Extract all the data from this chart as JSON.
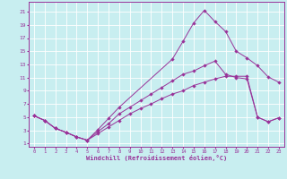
{
  "xlabel": "Windchill (Refroidissement éolien,°C)",
  "background_color": "#c8eef0",
  "line_color": "#993399",
  "xlim": [
    -0.5,
    23.5
  ],
  "ylim": [
    0.5,
    22.5
  ],
  "xticks": [
    0,
    1,
    2,
    3,
    4,
    5,
    6,
    7,
    8,
    9,
    10,
    11,
    12,
    13,
    14,
    15,
    16,
    17,
    18,
    19,
    20,
    21,
    22,
    23
  ],
  "yticks": [
    1,
    3,
    5,
    7,
    9,
    11,
    13,
    15,
    17,
    19,
    21
  ],
  "curve1_x": [
    0,
    1,
    2,
    3,
    4,
    5,
    6,
    7,
    8,
    13,
    14,
    15,
    16,
    17,
    18,
    19,
    20,
    21,
    22,
    23
  ],
  "curve1_y": [
    5.2,
    4.5,
    3.3,
    2.7,
    2.0,
    1.5,
    3.1,
    4.8,
    6.5,
    13.8,
    16.5,
    19.3,
    21.2,
    19.5,
    18.0,
    15.0,
    14.0,
    12.8,
    11.1,
    10.3
  ],
  "curve2_x": [
    0,
    1,
    2,
    3,
    4,
    5,
    6,
    7,
    8,
    9,
    10,
    11,
    12,
    13,
    14,
    15,
    16,
    17,
    18,
    19,
    20,
    21,
    22,
    23
  ],
  "curve2_y": [
    5.2,
    4.5,
    3.3,
    2.7,
    2.0,
    1.5,
    2.8,
    4.0,
    5.5,
    6.5,
    7.5,
    8.5,
    9.5,
    10.5,
    11.5,
    12.0,
    12.8,
    13.5,
    11.5,
    11.0,
    10.8,
    5.0,
    4.3,
    4.9
  ],
  "curve3_x": [
    0,
    1,
    2,
    3,
    4,
    5,
    6,
    7,
    8,
    9,
    10,
    11,
    12,
    13,
    14,
    15,
    16,
    17,
    18,
    19,
    20,
    21,
    22,
    23
  ],
  "curve3_y": [
    5.2,
    4.5,
    3.3,
    2.7,
    2.0,
    1.5,
    2.5,
    3.5,
    4.5,
    5.5,
    6.3,
    7.0,
    7.8,
    8.5,
    9.0,
    9.8,
    10.3,
    10.8,
    11.2,
    11.2,
    11.2,
    5.0,
    4.3,
    4.9
  ]
}
